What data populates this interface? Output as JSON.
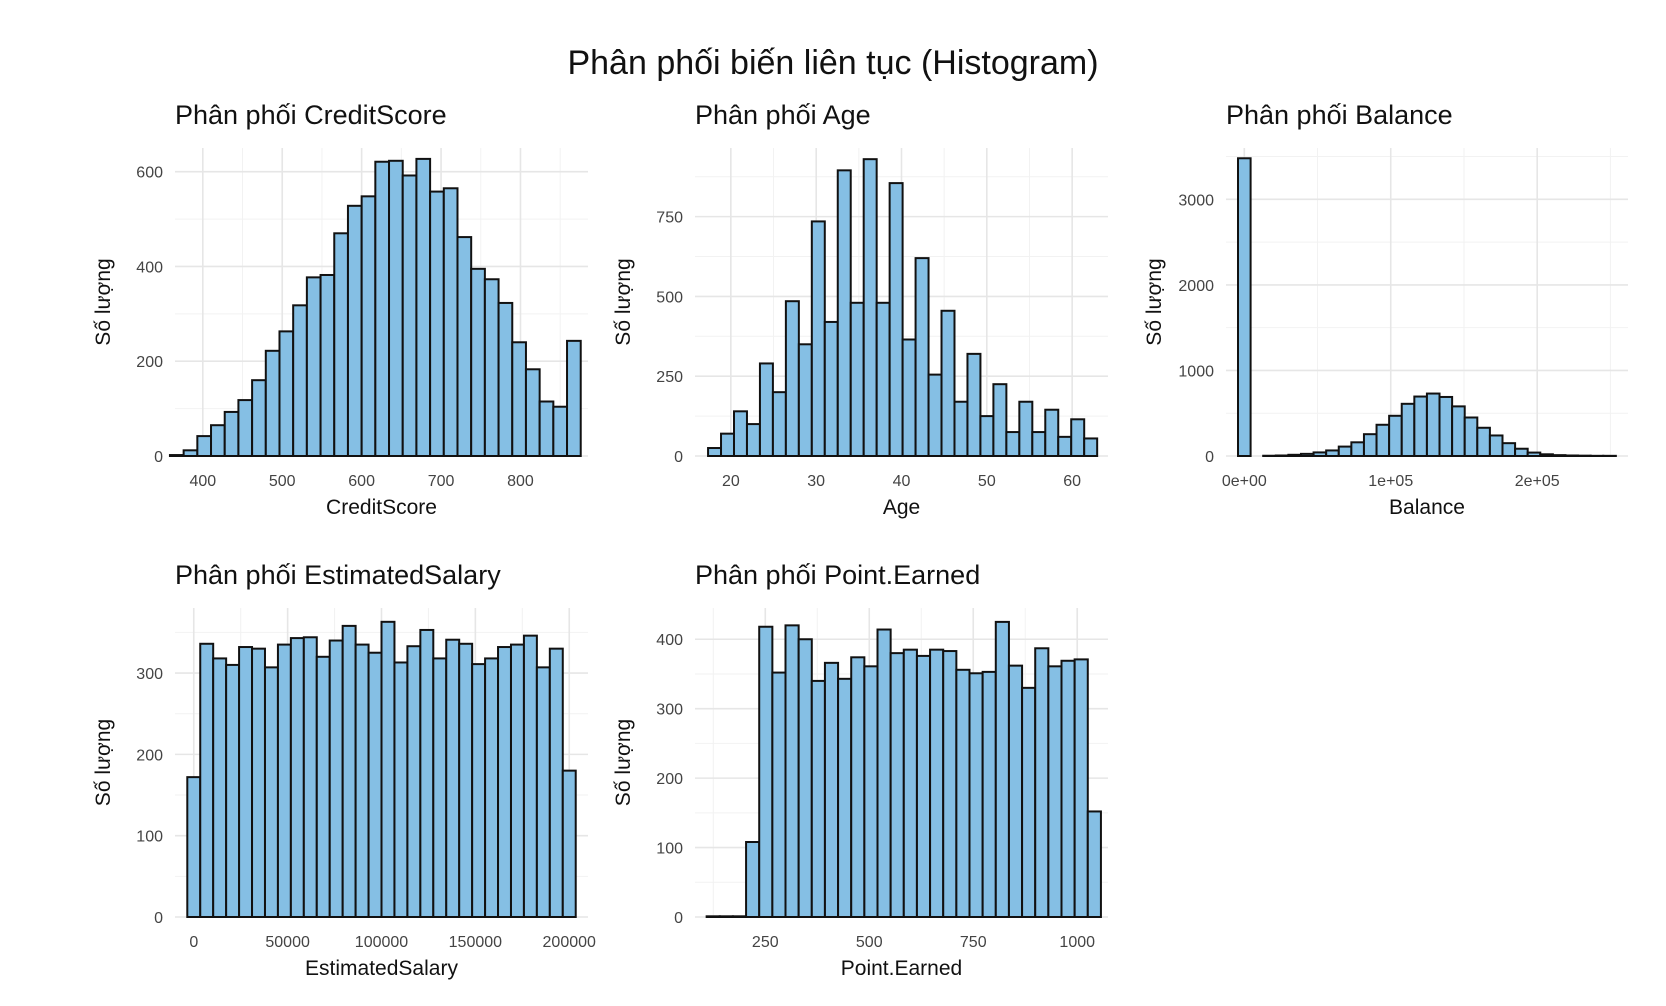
{
  "title": "Phân phối biến liên tục (Histogram)",
  "colors": {
    "bar_fill": "#85bfe4",
    "bar_stroke": "#111111",
    "grid_major": "#e6e6e6",
    "grid_minor": "#f2f2f2"
  },
  "chart_data": [
    {
      "type": "bar",
      "title": "Phân phối CreditScore",
      "xlabel": "CreditScore",
      "ylabel": "Số lượng",
      "xlim": [
        365,
        885
      ],
      "ylim": [
        0,
        650
      ],
      "xticks": [
        400,
        500,
        600,
        700,
        800
      ],
      "xtick_labels": [
        "400",
        "500",
        "600",
        "700",
        "800"
      ],
      "yticks": [
        0,
        200,
        400,
        600
      ],
      "ytick_labels": [
        "0",
        "200",
        "400",
        "600"
      ],
      "grid": true,
      "bin_start": 341.4,
      "bin_width": 17.24,
      "values": [
        0,
        2,
        12,
        42,
        65,
        93,
        118,
        160,
        222,
        263,
        318,
        377,
        382,
        470,
        528,
        548,
        621,
        623,
        592,
        627,
        558,
        565,
        462,
        395,
        373,
        323,
        240,
        183,
        115,
        104,
        243
      ]
    },
    {
      "type": "bar",
      "title": "Phân phối Age",
      "xlabel": "Age",
      "ylabel": "Số lượng",
      "xlim": [
        15.8,
        64.2
      ],
      "ylim": [
        0,
        965
      ],
      "xticks": [
        20,
        30,
        40,
        50,
        60
      ],
      "xtick_labels": [
        "20",
        "30",
        "40",
        "50",
        "60"
      ],
      "yticks": [
        0,
        250,
        500,
        750
      ],
      "ytick_labels": [
        "0",
        "250",
        "500",
        "750"
      ],
      "grid": true,
      "bin_start": 17.33,
      "bin_width": 1.52,
      "values": [
        25,
        70,
        140,
        100,
        290,
        200,
        485,
        350,
        735,
        420,
        895,
        480,
        930,
        480,
        855,
        365,
        620,
        255,
        455,
        170,
        320,
        125,
        225,
        75,
        170,
        75,
        145,
        60,
        115,
        55
      ]
    },
    {
      "type": "bar",
      "title": "Phân phối Balance",
      "xlabel": "Balance",
      "ylabel": "Số lượng",
      "xlim": [
        -12500,
        262000
      ],
      "ylim": [
        0,
        3600
      ],
      "xticks": [
        0,
        100000,
        200000
      ],
      "xtick_labels": [
        "0e+00",
        "1e+05",
        "2e+05"
      ],
      "yticks": [
        0,
        1000,
        2000,
        3000
      ],
      "ytick_labels": [
        "0",
        "1000",
        "2000",
        "3000"
      ],
      "grid": true,
      "bin_start": -4300,
      "bin_width": 8600,
      "values": [
        3480,
        0,
        3,
        6,
        14,
        25,
        42,
        65,
        110,
        160,
        255,
        365,
        470,
        610,
        695,
        730,
        690,
        580,
        450,
        330,
        240,
        150,
        85,
        40,
        20,
        10,
        6,
        4,
        2,
        2
      ]
    },
    {
      "type": "bar",
      "title": "Phân phối EstimatedSalary",
      "xlabel": "EstimatedSalary",
      "ylabel": "Số lượng",
      "xlim": [
        -10000,
        210000
      ],
      "ylim": [
        0,
        380
      ],
      "xticks": [
        0,
        50000,
        100000,
        150000,
        200000
      ],
      "xtick_labels": [
        "0",
        "50000",
        "100000",
        "150000",
        "200000"
      ],
      "yticks": [
        0,
        100,
        200,
        300
      ],
      "ytick_labels": [
        "0",
        "100",
        "200",
        "300"
      ],
      "grid": true,
      "bin_start": -3450,
      "bin_width": 6897,
      "values": [
        172,
        336,
        318,
        310,
        332,
        330,
        307,
        335,
        343,
        344,
        320,
        340,
        358,
        335,
        325,
        363,
        313,
        333,
        353,
        318,
        341,
        336,
        311,
        318,
        332,
        335,
        346,
        307,
        330,
        180
      ]
    },
    {
      "type": "bar",
      "title": "Phân phối Point.Earned",
      "xlabel": "Point.Earned",
      "ylabel": "Số lượng",
      "xlim": [
        81,
        1074
      ],
      "ylim": [
        0,
        445
      ],
      "xticks": [
        250,
        500,
        750,
        1000
      ],
      "xtick_labels": [
        "250",
        "500",
        "750",
        "1000"
      ],
      "yticks": [
        0,
        100,
        200,
        300,
        400
      ],
      "ytick_labels": [
        "0",
        "100",
        "200",
        "300",
        "400"
      ],
      "grid": true,
      "bin_start": 109,
      "bin_width": 31.6,
      "values": [
        1,
        1,
        1,
        108,
        418,
        352,
        420,
        400,
        340,
        366,
        343,
        374,
        361,
        414,
        380,
        385,
        376,
        385,
        383,
        356,
        351,
        353,
        425,
        362,
        330,
        387,
        361,
        369,
        371,
        152
      ]
    }
  ]
}
